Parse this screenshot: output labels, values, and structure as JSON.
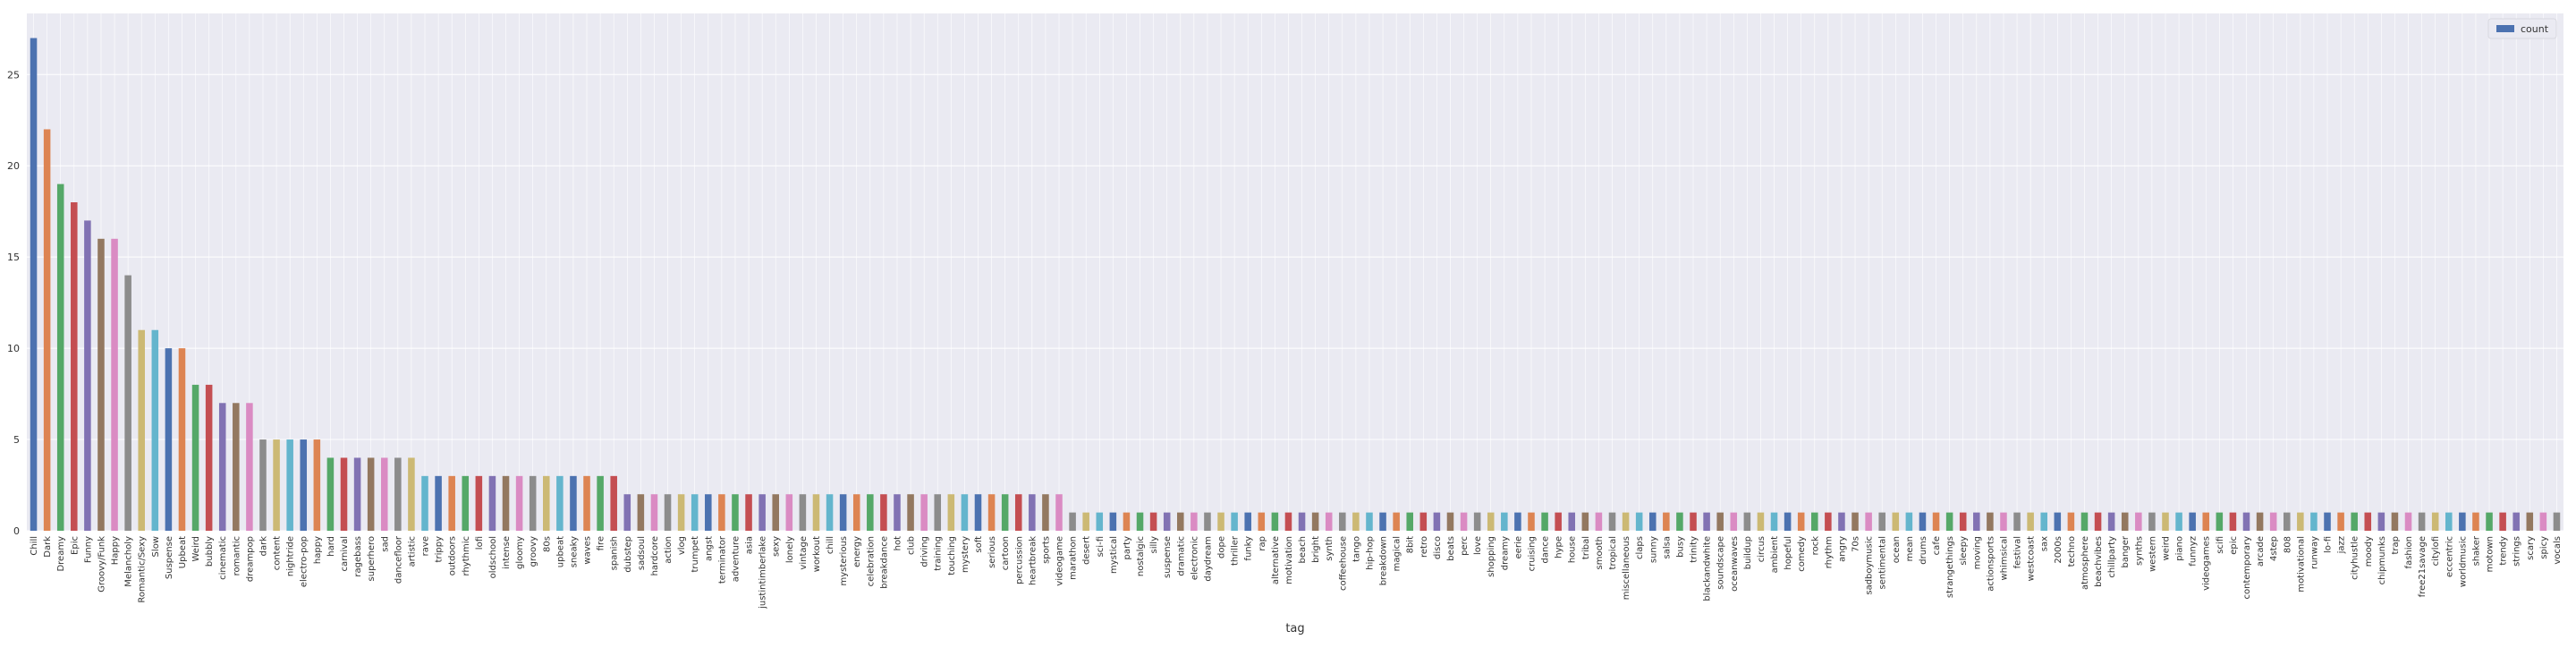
{
  "chart_data": {
    "type": "bar",
    "xlabel": "tag",
    "ylabel": "",
    "ylim": [
      0,
      28.35
    ],
    "yticks": [
      0,
      5,
      10,
      15,
      20,
      25
    ],
    "grid": true,
    "legend_position": "top-right",
    "series": [
      {
        "name": "count"
      }
    ],
    "colors": {
      "background": "#EAEAF2",
      "grid": "#FFFFFF",
      "legend_swatch": "#4C72B0",
      "palette": [
        "#4C72B0",
        "#DD8452",
        "#55A868",
        "#C44E52",
        "#8172B3",
        "#937860",
        "#DA8BC3",
        "#8C8C8C",
        "#CCB974",
        "#64B5CD"
      ]
    },
    "categories": [
      "Chill",
      "Dark",
      "Dreamy",
      "Epic",
      "Funny",
      "Groovy/Funk",
      "Happy",
      "Melancholy",
      "Romantic/Sexy",
      "Slow",
      "Suspense",
      "Upbeat",
      "Weird",
      "bubbly",
      "cinematic",
      "romantic",
      "dreampop",
      "dark",
      "content",
      "nightride",
      "electro-pop",
      "happy",
      "hard",
      "carnival",
      "ragebass",
      "superhero",
      "sad",
      "dancefloor",
      "artistic",
      "rave",
      "trippy",
      "outdoors",
      "rhythmic",
      "lofi",
      "oldschool",
      "intense",
      "gloomy",
      "groovy",
      "80s",
      "upbeat",
      "sneaky",
      "waves",
      "fire",
      "spanish",
      "dubstep",
      "sadsoul",
      "hardcore",
      "action",
      "vlog",
      "trumpet",
      "angst",
      "terminator",
      "adventure",
      "asia",
      "justintimberlake",
      "sexy",
      "lonely",
      "vintage",
      "workout",
      "chill",
      "mysterious",
      "energy",
      "celebration",
      "breakdance",
      "hot",
      "club",
      "driving",
      "training",
      "touching",
      "mystery",
      "soft",
      "serious",
      "cartoon",
      "percussion",
      "heartbreak",
      "sports",
      "videogame",
      "marathon",
      "desert",
      "sci-fi",
      "mystical",
      "party",
      "nostalgic",
      "silly",
      "suspense",
      "dramatic",
      "electronic",
      "daydream",
      "dope",
      "thriller",
      "funky",
      "rap",
      "alternative",
      "motivation",
      "beach",
      "bright",
      "synth",
      "coffeehouse",
      "tango",
      "hip-hop",
      "breakdown",
      "magical",
      "8bit",
      "retro",
      "disco",
      "beats",
      "perc",
      "love",
      "shopping",
      "dreamy",
      "eerie",
      "cruising",
      "dance",
      "hype",
      "house",
      "tribal",
      "smooth",
      "tropical",
      "miscellaneous",
      "claps",
      "sunny",
      "salsa",
      "busy",
      "trinity",
      "blackandwhite",
      "soundscape",
      "oceanwaves",
      "buildup",
      "circus",
      "ambient",
      "hopeful",
      "comedy",
      "rock",
      "rhythm",
      "angry",
      "70s",
      "sadboymusic",
      "sentimental",
      "ocean",
      "mean",
      "drums",
      "cafe",
      "strangethings",
      "sleepy",
      "moving",
      "actionsports",
      "whimsical",
      "festival",
      "westcoast",
      "sax",
      "2000s",
      "techno",
      "atmosphere",
      "beachvibes",
      "chillparty",
      "banger",
      "synths",
      "western",
      "weird",
      "piano",
      "funnyz",
      "videogames",
      "scifi",
      "epic",
      "contemporary",
      "arcade",
      "4step",
      "808",
      "motivational",
      "runway",
      "lo-fi",
      "jazz",
      "cityhustle",
      "moody",
      "chipmunks",
      "trap",
      "fashion",
      "free21savage",
      "citylofi",
      "eccentric",
      "worldmusic",
      "shaker",
      "motown",
      "trendy",
      "strings",
      "scary",
      "spicy",
      "vocals"
    ],
    "values": [
      27,
      22,
      19,
      18,
      17,
      16,
      16,
      14,
      11,
      11,
      10,
      10,
      8,
      8,
      7,
      7,
      7,
      5,
      5,
      5,
      5,
      5,
      4,
      4,
      4,
      4,
      4,
      4,
      4,
      3,
      3,
      3,
      3,
      3,
      3,
      3,
      3,
      3,
      3,
      3,
      3,
      3,
      3,
      3,
      2,
      2,
      2,
      2,
      2,
      2,
      2,
      2,
      2,
      2,
      2,
      2,
      2,
      2,
      2,
      2,
      2,
      2,
      2,
      2,
      2,
      2,
      2,
      2,
      2,
      2,
      2,
      2,
      2,
      2,
      2,
      2,
      2,
      1,
      1,
      1,
      1,
      1,
      1,
      1,
      1,
      1,
      1,
      1,
      1,
      1,
      1,
      1,
      1,
      1,
      1,
      1,
      1,
      1,
      1,
      1,
      1,
      1,
      1,
      1,
      1,
      1,
      1,
      1,
      1,
      1,
      1,
      1,
      1,
      1,
      1,
      1,
      1,
      1,
      1,
      1,
      1,
      1,
      1,
      1,
      1,
      1,
      1,
      1,
      1,
      1,
      1,
      1,
      1,
      1,
      1,
      1,
      1,
      1,
      1,
      1,
      1,
      1,
      1,
      1,
      1,
      1,
      1,
      1,
      1,
      1,
      1,
      1,
      1,
      1,
      1,
      1,
      1,
      1,
      1,
      1,
      1,
      1,
      1,
      1,
      1,
      1,
      1,
      1,
      1,
      1,
      1,
      1,
      1,
      1,
      1,
      1,
      1,
      1,
      1,
      1,
      1,
      1,
      1,
      1,
      1,
      1,
      1,
      1
    ]
  }
}
